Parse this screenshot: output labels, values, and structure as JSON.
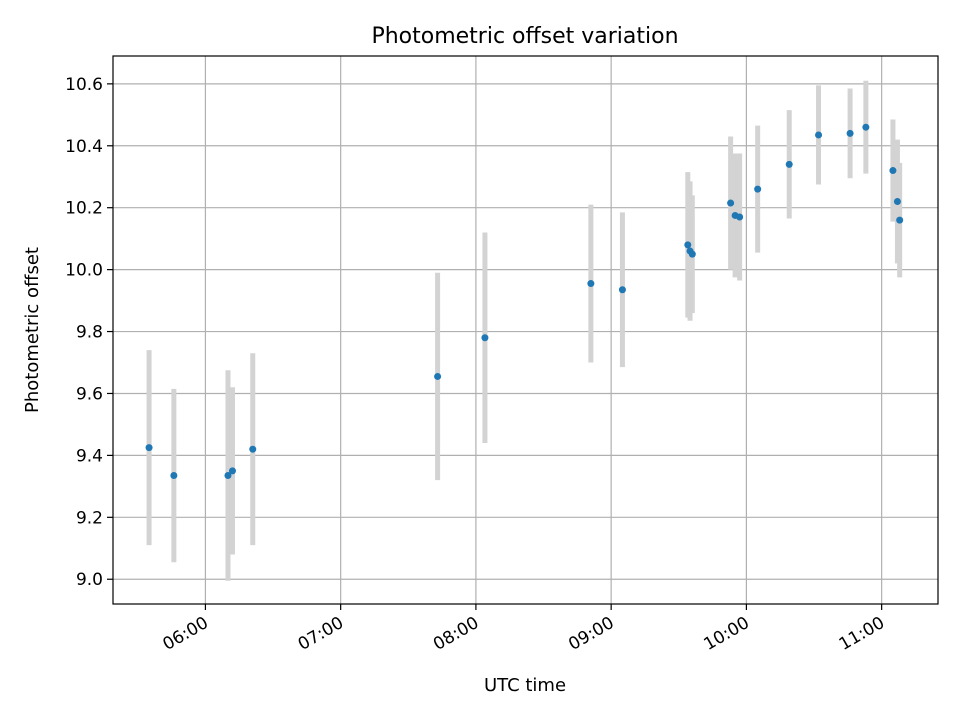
{
  "chart_data": {
    "type": "scatter",
    "title": "Photometric offset variation",
    "xlabel": "UTC time",
    "ylabel": "Photometric offset",
    "x_ticks": [
      "06:00",
      "07:00",
      "08:00",
      "09:00",
      "10:00",
      "11:00"
    ],
    "y_ticks": [
      "9.0",
      "9.2",
      "9.4",
      "9.6",
      "9.8",
      "10.0",
      "10.2",
      "10.4",
      "10.6"
    ],
    "xlim": [
      "05:19",
      "11:25"
    ],
    "ylim": [
      8.92,
      10.69
    ],
    "grid": true,
    "colors": {
      "points": "#1f77b4",
      "errorbars": "#d3d3d3",
      "grid": "#b0b0b0"
    },
    "series": [
      {
        "points": [
          {
            "x": "05:35",
            "y": 9.425,
            "err": 0.315
          },
          {
            "x": "05:46",
            "y": 9.335,
            "err": 0.28
          },
          {
            "x": "06:10",
            "y": 9.335,
            "err": 0.34
          },
          {
            "x": "06:12",
            "y": 9.35,
            "err": 0.27
          },
          {
            "x": "06:21",
            "y": 9.42,
            "err": 0.31
          },
          {
            "x": "07:43",
            "y": 9.655,
            "err": 0.335
          },
          {
            "x": "08:04",
            "y": 9.78,
            "err": 0.34
          },
          {
            "x": "08:51",
            "y": 9.955,
            "err": 0.255
          },
          {
            "x": "09:05",
            "y": 9.935,
            "err": 0.25
          },
          {
            "x": "09:34",
            "y": 10.08,
            "err": 0.235
          },
          {
            "x": "09:35",
            "y": 10.06,
            "err": 0.225
          },
          {
            "x": "09:36",
            "y": 10.05,
            "err": 0.19
          },
          {
            "x": "09:53",
            "y": 10.215,
            "err": 0.215
          },
          {
            "x": "09:55",
            "y": 10.175,
            "err": 0.2
          },
          {
            "x": "09:57",
            "y": 10.17,
            "err": 0.205
          },
          {
            "x": "10:05",
            "y": 10.26,
            "err": 0.205
          },
          {
            "x": "10:19",
            "y": 10.34,
            "err": 0.175
          },
          {
            "x": "10:32",
            "y": 10.435,
            "err": 0.16
          },
          {
            "x": "10:46",
            "y": 10.44,
            "err": 0.145
          },
          {
            "x": "10:53",
            "y": 10.46,
            "err": 0.15
          },
          {
            "x": "11:05",
            "y": 10.32,
            "err": 0.165
          },
          {
            "x": "11:07",
            "y": 10.22,
            "err": 0.2
          },
          {
            "x": "11:08",
            "y": 10.16,
            "err": 0.185
          }
        ]
      }
    ]
  }
}
